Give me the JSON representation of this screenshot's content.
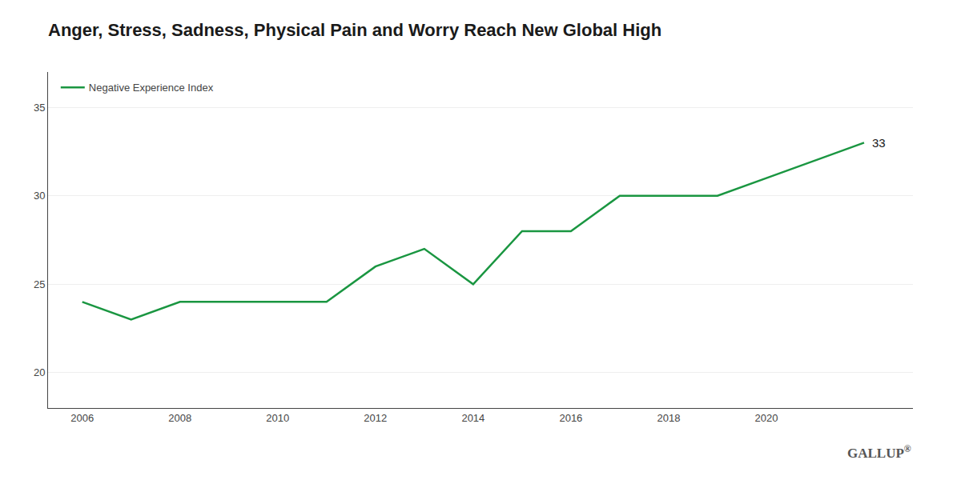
{
  "chart_data": {
    "type": "line",
    "title": "Anger, Stress, Sadness, Physical Pain and Worry Reach New Global High",
    "x": [
      2006,
      2007,
      2008,
      2009,
      2010,
      2011,
      2012,
      2013,
      2014,
      2015,
      2016,
      2017,
      2018,
      2019,
      2020,
      2021,
      2022
    ],
    "series": [
      {
        "name": "Negative Experience Index",
        "color": "#1a9641",
        "values": [
          24,
          23,
          24,
          24,
          24,
          24,
          26,
          27,
          25,
          28,
          28,
          30,
          30,
          30,
          31,
          32,
          33
        ]
      }
    ],
    "xlim": [
      2005.3,
      2023.0
    ],
    "xticks": [
      2006,
      2008,
      2010,
      2012,
      2014,
      2016,
      2018,
      2020
    ],
    "ylim": [
      18,
      37
    ],
    "yticks": [
      20,
      25,
      30,
      35
    ],
    "grid": true,
    "legend": "upper left",
    "annotations": [
      {
        "text": "33",
        "x": 2022,
        "y": 33
      },
      {
        "text": "GALLUP"
      },
      {
        "text": "®"
      }
    ]
  }
}
